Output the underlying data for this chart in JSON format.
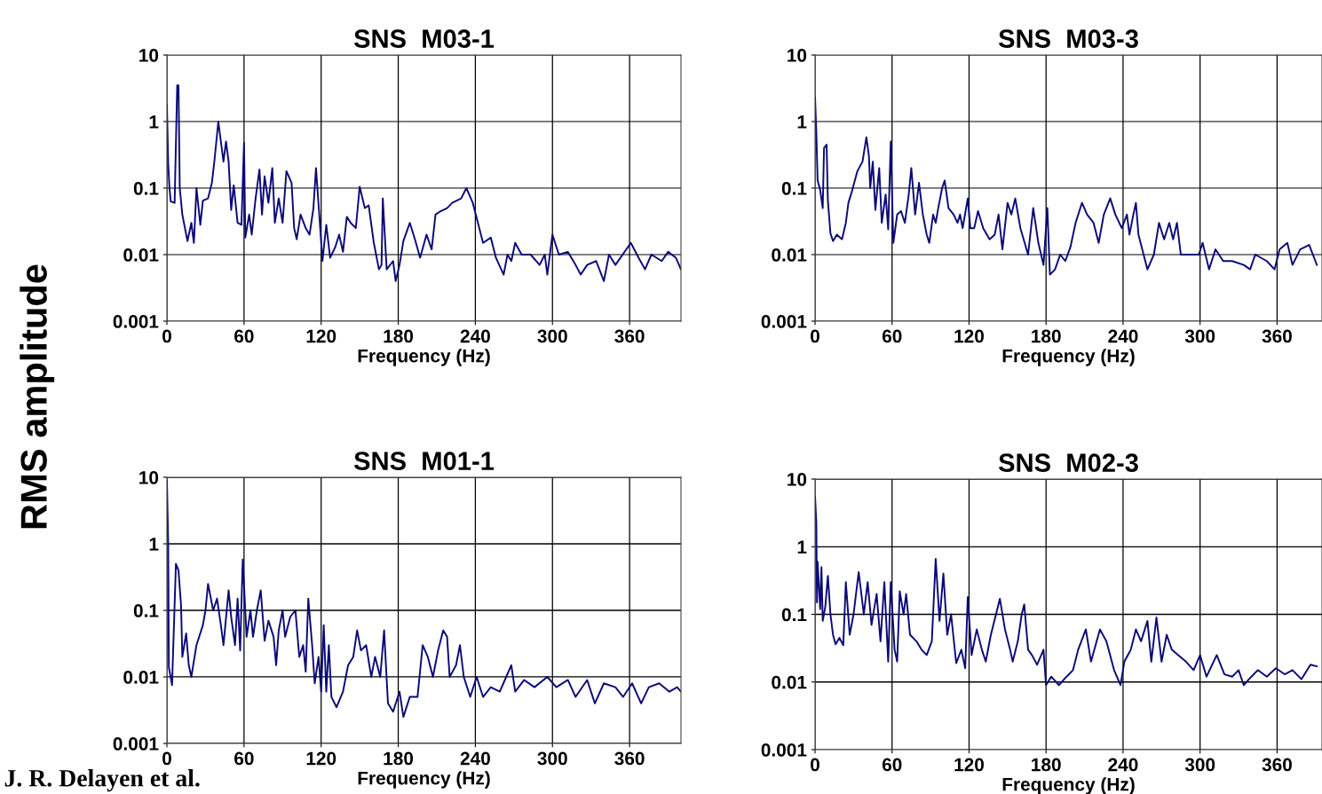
{
  "chart_data": [
    {
      "type": "line",
      "title": "SNS  M03-1",
      "xlabel": "Frequency (Hz)",
      "ylabel": "RMS amplitude",
      "log": "y",
      "grid": true,
      "xlim": [
        0,
        400
      ],
      "ylim": [
        0.001,
        10
      ],
      "xticks": [
        0,
        60,
        120,
        180,
        240,
        300,
        360
      ],
      "yticks": [
        0.001,
        0.01,
        0.1,
        1,
        10
      ],
      "x": [
        0,
        1,
        2,
        3,
        6,
        8,
        9,
        10,
        12,
        16,
        19,
        21,
        23,
        26,
        28,
        32,
        35,
        37,
        40,
        42,
        44,
        46,
        48,
        50,
        52,
        55,
        58,
        60,
        61,
        64,
        66,
        69,
        72,
        74,
        76,
        79,
        82,
        84,
        87,
        90,
        93,
        97,
        99,
        101,
        104,
        108,
        111,
        114,
        116,
        119,
        121,
        124,
        127,
        131,
        134,
        137,
        140,
        143,
        147,
        150,
        154,
        157,
        161,
        165,
        167,
        168,
        171,
        176,
        178,
        181,
        184,
        189,
        193,
        197,
        202,
        206,
        209,
        213,
        218,
        222,
        229,
        233,
        238,
        246,
        252,
        256,
        262,
        265,
        268,
        271,
        276,
        283,
        290,
        294,
        296,
        300,
        305,
        312,
        318,
        322,
        327,
        334,
        340,
        344,
        349,
        361,
        367,
        372,
        377,
        385,
        390,
        396,
        400
      ],
      "series": [
        {
          "color": "#0a0a78",
          "values": [
            1.8,
            0.23,
            0.1,
            0.063,
            0.06,
            3.5,
            3.5,
            0.1,
            0.04,
            0.016,
            0.03,
            0.015,
            0.1,
            0.028,
            0.065,
            0.07,
            0.12,
            0.26,
            1.0,
            0.5,
            0.25,
            0.5,
            0.25,
            0.047,
            0.11,
            0.03,
            0.028,
            0.48,
            0.018,
            0.04,
            0.02,
            0.07,
            0.19,
            0.04,
            0.15,
            0.06,
            0.2,
            0.03,
            0.07,
            0.03,
            0.18,
            0.12,
            0.025,
            0.017,
            0.04,
            0.025,
            0.02,
            0.05,
            0.2,
            0.03,
            0.008,
            0.028,
            0.009,
            0.013,
            0.02,
            0.011,
            0.037,
            0.03,
            0.025,
            0.105,
            0.05,
            0.055,
            0.015,
            0.006,
            0.007,
            0.07,
            0.006,
            0.008,
            0.004,
            0.007,
            0.016,
            0.03,
            0.017,
            0.009,
            0.02,
            0.012,
            0.04,
            0.045,
            0.05,
            0.06,
            0.07,
            0.1,
            0.06,
            0.015,
            0.018,
            0.009,
            0.005,
            0.01,
            0.008,
            0.015,
            0.01,
            0.01,
            0.007,
            0.01,
            0.005,
            0.02,
            0.01,
            0.011,
            0.007,
            0.005,
            0.007,
            0.008,
            0.004,
            0.01,
            0.007,
            0.015,
            0.009,
            0.006,
            0.01,
            0.008,
            0.011,
            0.009,
            0.006
          ]
        }
      ]
    },
    {
      "type": "line",
      "title": "SNS  M03-3",
      "xlabel": "Frequency (Hz)",
      "log": "y",
      "grid": true,
      "xlim": [
        0,
        395
      ],
      "ylim": [
        0.001,
        10
      ],
      "xticks": [
        0,
        60,
        120,
        180,
        240,
        300,
        360
      ],
      "yticks": [
        0.001,
        0.01,
        0.1,
        1,
        10
      ],
      "x": [
        0,
        1,
        2,
        4,
        6,
        7,
        9,
        10,
        12,
        14,
        17,
        21,
        24,
        26,
        29,
        33,
        37,
        40,
        42,
        43,
        45,
        47,
        50,
        52,
        55,
        57,
        59,
        61,
        64,
        67,
        70,
        73,
        75,
        78,
        81,
        84,
        87,
        89,
        92,
        94,
        96,
        99,
        101,
        104,
        108,
        111,
        113,
        115,
        119,
        121,
        124,
        127,
        131,
        136,
        140,
        143,
        146,
        150,
        153,
        156,
        160,
        166,
        170,
        174,
        178,
        181,
        183,
        187,
        191,
        195,
        199,
        203,
        208,
        212,
        217,
        221,
        225,
        230,
        234,
        239,
        243,
        245,
        248,
        250,
        252,
        256,
        259,
        264,
        268,
        272,
        276,
        279,
        282,
        285,
        292,
        299,
        302,
        307,
        312,
        318,
        325,
        334,
        339,
        343,
        352,
        358,
        362,
        368,
        372,
        378,
        385,
        391
      ],
      "series": [
        {
          "color": "#0a0a78",
          "values": [
            2.3,
            0.7,
            0.13,
            0.094,
            0.05,
            0.4,
            0.45,
            0.065,
            0.021,
            0.016,
            0.02,
            0.017,
            0.03,
            0.06,
            0.093,
            0.18,
            0.25,
            0.58,
            0.3,
            0.1,
            0.25,
            0.047,
            0.2,
            0.03,
            0.08,
            0.024,
            0.5,
            0.015,
            0.04,
            0.045,
            0.03,
            0.08,
            0.2,
            0.04,
            0.12,
            0.04,
            0.02,
            0.015,
            0.04,
            0.03,
            0.05,
            0.1,
            0.13,
            0.05,
            0.04,
            0.03,
            0.04,
            0.025,
            0.07,
            0.025,
            0.025,
            0.045,
            0.025,
            0.017,
            0.02,
            0.04,
            0.012,
            0.06,
            0.04,
            0.07,
            0.025,
            0.01,
            0.05,
            0.015,
            0.007,
            0.05,
            0.005,
            0.006,
            0.01,
            0.008,
            0.013,
            0.03,
            0.06,
            0.04,
            0.03,
            0.015,
            0.04,
            0.07,
            0.04,
            0.025,
            0.04,
            0.02,
            0.04,
            0.06,
            0.02,
            0.01,
            0.006,
            0.01,
            0.03,
            0.017,
            0.03,
            0.017,
            0.03,
            0.01,
            0.01,
            0.01,
            0.015,
            0.006,
            0.012,
            0.008,
            0.008,
            0.007,
            0.006,
            0.01,
            0.008,
            0.006,
            0.012,
            0.015,
            0.007,
            0.012,
            0.014,
            0.007
          ]
        }
      ]
    },
    {
      "type": "line",
      "title": "SNS  M01-1",
      "xlabel": "Frequency (Hz)",
      "log": "y",
      "grid": true,
      "annotations": [
        "J. R. Delayen et al."
      ],
      "xlim": [
        0,
        400
      ],
      "ylim": [
        0.001,
        10
      ],
      "xticks": [
        0,
        60,
        120,
        180,
        240,
        300,
        360
      ],
      "yticks": [
        0.001,
        0.01,
        0.1,
        1,
        10
      ],
      "x": [
        0,
        1,
        1.5,
        4,
        7,
        9,
        11,
        12,
        15,
        17,
        19,
        23,
        28,
        30,
        32,
        36,
        39,
        42,
        44,
        48,
        50,
        53,
        55,
        57,
        59,
        62,
        65,
        67,
        70,
        73,
        76,
        79,
        83,
        85,
        87,
        90,
        92,
        96,
        100,
        103,
        106,
        108,
        110,
        113,
        115,
        118,
        120,
        122,
        124,
        126,
        128,
        132,
        137,
        141,
        145,
        148,
        151,
        155,
        159,
        162,
        166,
        169,
        172,
        176,
        181,
        184,
        189,
        195,
        199,
        203,
        207,
        211,
        215,
        218,
        220,
        225,
        228,
        231,
        236,
        241,
        246,
        252,
        259,
        264,
        268,
        271,
        278,
        286,
        296,
        303,
        312,
        318,
        327,
        333,
        340,
        349,
        355,
        362,
        369,
        375,
        383,
        391,
        397,
        400
      ],
      "series": [
        {
          "color": "#0a0a78",
          "values": [
            9,
            1.0,
            0.014,
            0.0075,
            0.5,
            0.4,
            0.12,
            0.02,
            0.045,
            0.015,
            0.01,
            0.03,
            0.06,
            0.1,
            0.25,
            0.1,
            0.15,
            0.06,
            0.03,
            0.2,
            0.08,
            0.03,
            0.15,
            0.025,
            0.58,
            0.04,
            0.1,
            0.04,
            0.1,
            0.2,
            0.035,
            0.07,
            0.04,
            0.015,
            0.05,
            0.1,
            0.04,
            0.08,
            0.1,
            0.02,
            0.03,
            0.012,
            0.15,
            0.03,
            0.008,
            0.02,
            0.006,
            0.06,
            0.006,
            0.03,
            0.005,
            0.0035,
            0.006,
            0.015,
            0.02,
            0.05,
            0.025,
            0.03,
            0.01,
            0.02,
            0.01,
            0.05,
            0.004,
            0.003,
            0.006,
            0.0025,
            0.005,
            0.005,
            0.03,
            0.02,
            0.01,
            0.025,
            0.05,
            0.04,
            0.01,
            0.015,
            0.03,
            0.01,
            0.005,
            0.01,
            0.005,
            0.007,
            0.006,
            0.01,
            0.015,
            0.006,
            0.009,
            0.007,
            0.01,
            0.007,
            0.009,
            0.005,
            0.009,
            0.004,
            0.008,
            0.007,
            0.005,
            0.008,
            0.004,
            0.007,
            0.008,
            0.006,
            0.007,
            0.006
          ]
        }
      ]
    },
    {
      "type": "line",
      "title": "SNS  M02-3",
      "xlabel": "Frequency (Hz)",
      "log": "y",
      "grid": true,
      "xlim": [
        0,
        395
      ],
      "ylim": [
        0.001,
        10
      ],
      "xticks": [
        0,
        60,
        120,
        180,
        240,
        300,
        360
      ],
      "yticks": [
        0.001,
        0.01,
        0.1,
        1,
        10
      ],
      "x": [
        0,
        1,
        1.5,
        2,
        4,
        5,
        6,
        8,
        10,
        12,
        14,
        16,
        19,
        22,
        24,
        27,
        30,
        34,
        38,
        41,
        44,
        48,
        51,
        54,
        57,
        59,
        62,
        64,
        66,
        69,
        71,
        74,
        79,
        83,
        87,
        91,
        94,
        97,
        100,
        103,
        106,
        110,
        114,
        117,
        119,
        122,
        126,
        130,
        133,
        137,
        141,
        144,
        148,
        152,
        154,
        158,
        161,
        163,
        166,
        169,
        173,
        178,
        180,
        184,
        190,
        196,
        201,
        205,
        211,
        215,
        222,
        227,
        233,
        238,
        241,
        246,
        250,
        254,
        259,
        262,
        266,
        270,
        274,
        278,
        283,
        289,
        295,
        300,
        305,
        313,
        319,
        325,
        330,
        334,
        340,
        345,
        352,
        359,
        366,
        372,
        379,
        386,
        391
      ],
      "series": [
        {
          "color": "#0a0a78",
          "values": [
            5.5,
            2.3,
            0.15,
            0.6,
            0.12,
            0.5,
            0.08,
            0.13,
            0.37,
            0.1,
            0.05,
            0.036,
            0.045,
            0.035,
            0.3,
            0.05,
            0.1,
            0.42,
            0.1,
            0.3,
            0.07,
            0.2,
            0.04,
            0.3,
            0.02,
            0.3,
            0.03,
            0.02,
            0.22,
            0.1,
            0.2,
            0.05,
            0.04,
            0.03,
            0.025,
            0.04,
            0.66,
            0.08,
            0.4,
            0.05,
            0.1,
            0.019,
            0.03,
            0.016,
            0.18,
            0.025,
            0.06,
            0.03,
            0.02,
            0.05,
            0.1,
            0.17,
            0.06,
            0.03,
            0.02,
            0.04,
            0.1,
            0.14,
            0.03,
            0.025,
            0.018,
            0.03,
            0.009,
            0.012,
            0.009,
            0.012,
            0.015,
            0.03,
            0.06,
            0.02,
            0.06,
            0.04,
            0.015,
            0.009,
            0.02,
            0.03,
            0.06,
            0.04,
            0.08,
            0.02,
            0.09,
            0.02,
            0.05,
            0.03,
            0.025,
            0.02,
            0.015,
            0.025,
            0.012,
            0.025,
            0.013,
            0.012,
            0.015,
            0.009,
            0.012,
            0.015,
            0.012,
            0.016,
            0.013,
            0.015,
            0.011,
            0.018,
            0.017
          ]
        }
      ]
    }
  ]
}
